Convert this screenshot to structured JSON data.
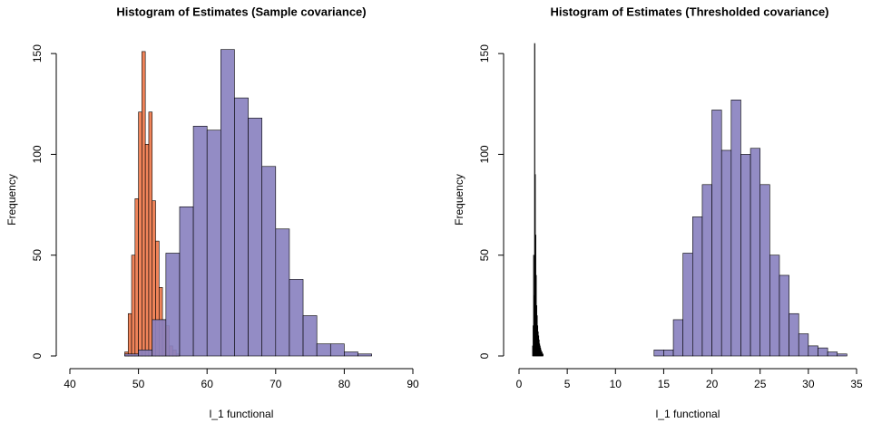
{
  "chart_data": [
    {
      "type": "histogram",
      "title": "Histogram of Estimates (Sample covariance)",
      "xlabel": "l_1 functional",
      "ylabel": "Frequency",
      "xlim": [
        40,
        90
      ],
      "xticks": [
        40,
        50,
        60,
        70,
        80,
        90
      ],
      "ylim": [
        0,
        155
      ],
      "yticks": [
        0,
        50,
        100,
        150
      ],
      "series": [
        {
          "color": "#f0845a",
          "bins": [
            48,
            48.5,
            49,
            49.5,
            50,
            50.5,
            51,
            51.5,
            52,
            52.5,
            53,
            53.5,
            54,
            54.5,
            55,
            55.5,
            56
          ],
          "values": [
            2,
            21,
            50,
            78,
            121,
            151,
            105,
            121,
            77,
            57,
            34,
            18,
            15,
            5,
            3,
            1
          ]
        },
        {
          "color": "#8a82c0",
          "bins": [
            48,
            50,
            52,
            54,
            56,
            58,
            60,
            62,
            64,
            66,
            68,
            70,
            72,
            74,
            76,
            78,
            80,
            82,
            84
          ],
          "values": [
            1,
            3,
            18,
            51,
            74,
            114,
            112,
            152,
            128,
            118,
            94,
            63,
            38,
            20,
            6,
            6,
            2,
            1
          ]
        }
      ]
    },
    {
      "type": "histogram",
      "title": "Histogram of Estimates (Thresholded covariance)",
      "xlabel": "l_1 functional",
      "ylabel": "Frequency",
      "xlim": [
        0,
        35
      ],
      "xticks": [
        0,
        5,
        10,
        15,
        20,
        25,
        30,
        35
      ],
      "ylim": [
        0,
        155
      ],
      "yticks": [
        0,
        50,
        100,
        150
      ],
      "series": [
        {
          "color": "#000000",
          "bins": [
            1.4,
            1.45,
            1.5,
            1.55,
            1.6,
            1.65,
            1.7,
            1.75,
            1.8,
            1.85,
            1.9,
            1.95,
            2,
            2.05,
            2.1,
            2.15,
            2.2,
            2.25,
            2.3,
            2.35,
            2.4,
            2.45,
            2.5
          ],
          "values": [
            5,
            15,
            50,
            30,
            155,
            90,
            60,
            40,
            25,
            20,
            15,
            12,
            10,
            8,
            6,
            5,
            4,
            3,
            2,
            2,
            1,
            1
          ]
        },
        {
          "color": "#8a82c0",
          "bins": [
            14,
            15,
            16,
            17,
            18,
            19,
            20,
            21,
            22,
            23,
            24,
            25,
            26,
            27,
            28,
            29,
            30,
            31,
            32,
            33,
            34
          ],
          "values": [
            3,
            3,
            18,
            51,
            69,
            85,
            122,
            102,
            127,
            100,
            103,
            85,
            50,
            40,
            21,
            11,
            5,
            4,
            2,
            1
          ]
        }
      ]
    }
  ]
}
